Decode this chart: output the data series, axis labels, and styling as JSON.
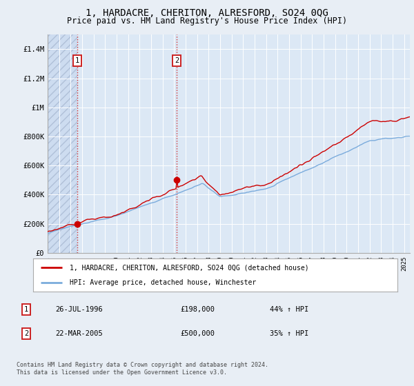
{
  "title": "1, HARDACRE, CHERITON, ALRESFORD, SO24 0QG",
  "subtitle": "Price paid vs. HM Land Registry's House Price Index (HPI)",
  "title_fontsize": 10,
  "subtitle_fontsize": 8.5,
  "background_color": "#e8eef5",
  "plot_bg_color": "#dce8f5",
  "ylim": [
    0,
    1500000
  ],
  "yticks": [
    0,
    200000,
    400000,
    600000,
    800000,
    1000000,
    1200000,
    1400000
  ],
  "ytick_labels": [
    "£0",
    "£200K",
    "£400K",
    "£600K",
    "£800K",
    "£1M",
    "£1.2M",
    "£1.4M"
  ],
  "xmin": 1994.0,
  "xmax": 2025.5,
  "hatch_end": 1996.583,
  "sale1_x": 1996.583,
  "sale1_y": 198000,
  "sale2_x": 2005.22,
  "sale2_y": 500000,
  "red_line_color": "#cc0000",
  "blue_line_color": "#7aabdc",
  "legend_line1": "1, HARDACRE, CHERITON, ALRESFORD, SO24 0QG (detached house)",
  "legend_line2": "HPI: Average price, detached house, Winchester",
  "table_entries": [
    {
      "num": "1",
      "date": "26-JUL-1996",
      "price": "£198,000",
      "hpi": "44% ↑ HPI"
    },
    {
      "num": "2",
      "date": "22-MAR-2005",
      "price": "£500,000",
      "hpi": "35% ↑ HPI"
    }
  ],
  "footer": "Contains HM Land Registry data © Crown copyright and database right 2024.\nThis data is licensed under the Open Government Licence v3.0."
}
